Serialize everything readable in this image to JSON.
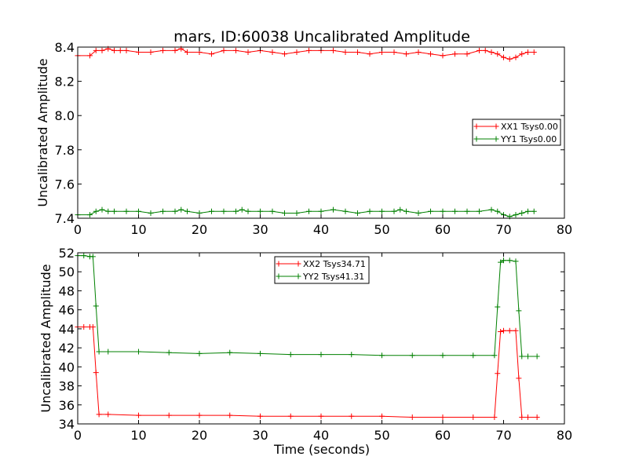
{
  "colors": {
    "xx": "#ff0000",
    "yy": "#008000",
    "frame": "#000000"
  },
  "chart_data": [
    {
      "type": "line",
      "title": "mars, ID:60038 Uncalibrated Amplitude",
      "xlabel": "",
      "ylabel": "Uncalibrated Amplitude",
      "xlim": [
        0,
        80
      ],
      "ylim": [
        7.4,
        8.4
      ],
      "xticks": [
        "0",
        "10",
        "20",
        "30",
        "40",
        "50",
        "60",
        "70",
        "80"
      ],
      "yticks": [
        "7.4",
        "7.6",
        "7.8",
        "8.0",
        "8.2",
        "8.4"
      ],
      "legend_position": "center-right",
      "series": [
        {
          "name": "XX1 Tsys0.00",
          "color": "#ff0000",
          "marker": "+",
          "x": [
            0,
            2,
            3,
            4,
            5,
            6,
            7,
            8,
            10,
            12,
            14,
            16,
            17,
            18,
            20,
            22,
            24,
            26,
            28,
            30,
            32,
            34,
            36,
            38,
            40,
            42,
            44,
            46,
            48,
            50,
            52,
            54,
            56,
            58,
            60,
            62,
            64,
            66,
            67,
            68,
            69,
            70,
            71,
            72,
            73,
            74,
            75
          ],
          "y": [
            8.35,
            8.35,
            8.38,
            8.38,
            8.39,
            8.38,
            8.38,
            8.38,
            8.37,
            8.37,
            8.38,
            8.38,
            8.39,
            8.37,
            8.37,
            8.36,
            8.38,
            8.38,
            8.37,
            8.38,
            8.37,
            8.36,
            8.37,
            8.38,
            8.38,
            8.38,
            8.37,
            8.37,
            8.36,
            8.37,
            8.37,
            8.36,
            8.37,
            8.36,
            8.35,
            8.36,
            8.36,
            8.38,
            8.38,
            8.37,
            8.36,
            8.34,
            8.33,
            8.34,
            8.36,
            8.37,
            8.37
          ]
        },
        {
          "name": "YY1 Tsys0.00",
          "color": "#008000",
          "marker": "+",
          "x": [
            0,
            2,
            3,
            4,
            5,
            6,
            8,
            10,
            12,
            14,
            16,
            17,
            18,
            20,
            22,
            24,
            26,
            27,
            28,
            30,
            32,
            34,
            36,
            38,
            40,
            42,
            44,
            46,
            48,
            50,
            52,
            53,
            54,
            56,
            58,
            60,
            62,
            64,
            66,
            68,
            69,
            70,
            71,
            72,
            73,
            74,
            75
          ],
          "y": [
            7.42,
            7.42,
            7.44,
            7.45,
            7.44,
            7.44,
            7.44,
            7.44,
            7.43,
            7.44,
            7.44,
            7.45,
            7.44,
            7.43,
            7.44,
            7.44,
            7.44,
            7.45,
            7.44,
            7.44,
            7.44,
            7.43,
            7.43,
            7.44,
            7.44,
            7.45,
            7.44,
            7.43,
            7.44,
            7.44,
            7.44,
            7.45,
            7.44,
            7.43,
            7.44,
            7.44,
            7.44,
            7.44,
            7.44,
            7.45,
            7.44,
            7.42,
            7.41,
            7.42,
            7.43,
            7.44,
            7.44
          ]
        }
      ]
    },
    {
      "type": "line",
      "title": "",
      "xlabel": "Time (seconds)",
      "ylabel": "Uncalibrated Amplitude",
      "xlim": [
        0,
        80
      ],
      "ylim": [
        34,
        52
      ],
      "xticks": [
        "0",
        "10",
        "20",
        "30",
        "40",
        "50",
        "60",
        "70",
        "80"
      ],
      "yticks": [
        "34",
        "36",
        "38",
        "40",
        "42",
        "44",
        "46",
        "48",
        "50",
        "52"
      ],
      "legend_position": "upper-center",
      "series": [
        {
          "name": "XX2 Tsys34.71",
          "color": "#ff0000",
          "marker": "+",
          "x": [
            0,
            1,
            2,
            2.5,
            3,
            3.5,
            5,
            10,
            15,
            20,
            25,
            30,
            35,
            40,
            45,
            50,
            55,
            60,
            65,
            68.5,
            69,
            69.5,
            70,
            71,
            72,
            72.5,
            73,
            74,
            75.5
          ],
          "y": [
            44.2,
            44.2,
            44.2,
            44.2,
            39.4,
            35.0,
            35.0,
            34.9,
            34.9,
            34.9,
            34.9,
            34.8,
            34.8,
            34.8,
            34.8,
            34.8,
            34.7,
            34.7,
            34.7,
            34.7,
            39.3,
            43.7,
            43.8,
            43.8,
            43.8,
            38.8,
            34.7,
            34.7,
            34.7
          ]
        },
        {
          "name": "YY2 Tsys41.31",
          "color": "#008000",
          "marker": "+",
          "x": [
            0,
            1,
            2,
            2.5,
            3,
            3.5,
            5,
            10,
            15,
            20,
            25,
            30,
            35,
            40,
            45,
            50,
            55,
            60,
            65,
            68.5,
            69,
            69.5,
            70,
            71,
            72,
            72.5,
            73,
            74,
            75.5
          ],
          "y": [
            51.7,
            51.7,
            51.6,
            51.6,
            46.4,
            41.6,
            41.6,
            41.6,
            41.5,
            41.4,
            41.5,
            41.4,
            41.3,
            41.3,
            41.3,
            41.2,
            41.2,
            41.2,
            41.2,
            41.2,
            46.3,
            51.0,
            51.2,
            51.2,
            51.1,
            45.9,
            41.1,
            41.1,
            41.1
          ]
        }
      ]
    }
  ]
}
